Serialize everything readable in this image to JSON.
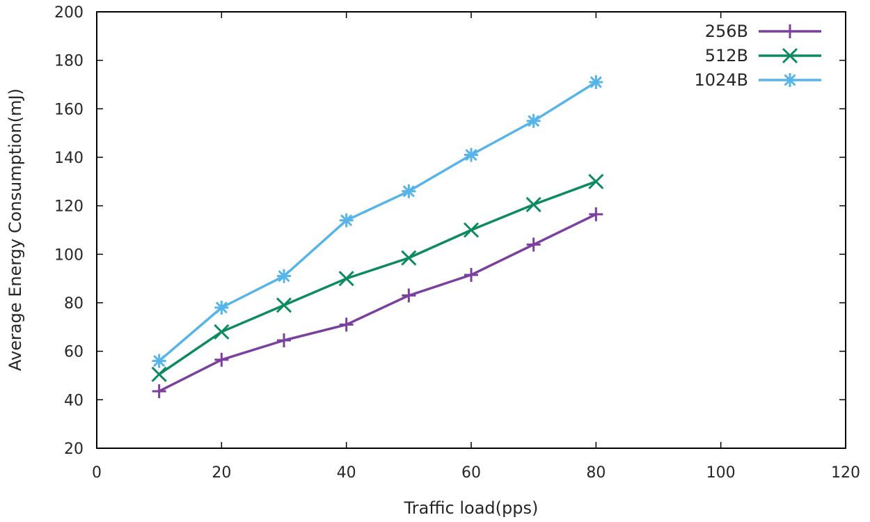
{
  "chart_data": {
    "type": "line",
    "title": "",
    "xlabel": "Traffic load(pps)",
    "ylabel": "Average Energy Consumption(mJ)",
    "xlim": [
      0,
      120
    ],
    "ylim": [
      20,
      200
    ],
    "xticks": [
      0,
      20,
      40,
      60,
      80,
      100,
      120
    ],
    "yticks": [
      20,
      40,
      60,
      80,
      100,
      120,
      140,
      160,
      180,
      200
    ],
    "grid": false,
    "legend_position": "top-right",
    "x": [
      10,
      20,
      30,
      40,
      50,
      60,
      70,
      80
    ],
    "series": [
      {
        "name": "256B",
        "marker": "plus",
        "color": "#7b3f9e",
        "values": [
          43.5,
          56.5,
          64.5,
          71,
          83,
          91.5,
          104,
          116.5
        ]
      },
      {
        "name": "512B",
        "marker": "cross",
        "color": "#0e8a5f",
        "values": [
          50.5,
          68,
          79,
          90,
          98.5,
          110,
          120.5,
          130
        ]
      },
      {
        "name": "1024B",
        "marker": "star",
        "color": "#56b4e9",
        "values": [
          56,
          78,
          91,
          114,
          126,
          141,
          155,
          171
        ]
      }
    ]
  }
}
